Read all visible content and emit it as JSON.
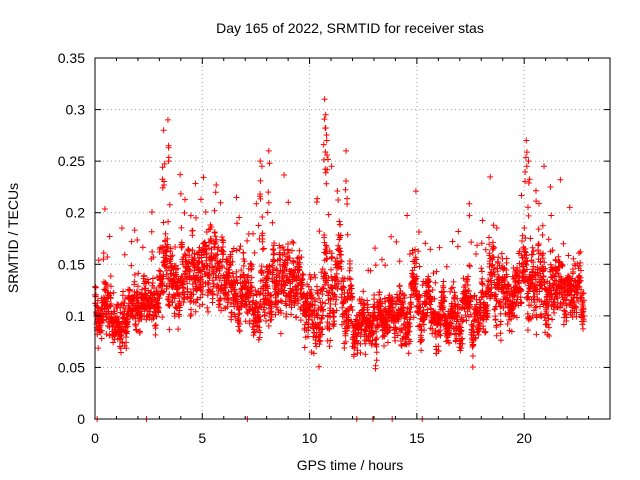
{
  "chart_data": {
    "type": "scatter",
    "title": "Day 165 of 2022, SRMTID for receiver stas",
    "xlabel": "GPS time / hours",
    "ylabel": "SRMTID / TECUs",
    "xlim": [
      0,
      24
    ],
    "ylim": [
      0,
      0.35
    ],
    "x_ticks": [
      "0",
      "5",
      "10",
      "15",
      "20"
    ],
    "y_ticks": [
      "0",
      "0.05",
      "0.1",
      "0.15",
      "0.2",
      "0.25",
      "0.3",
      "0.35"
    ],
    "grid": true,
    "marker": "+",
    "colors": {
      "series": "#ff0000",
      "grid": "#a0a0a0",
      "axis": "#000000"
    },
    "series": [
      {
        "name": "SRMTID",
        "generated_from_envelope": true,
        "points_per_hour": 160,
        "seed": 165,
        "hourly_center": [
          0.11,
          0.105,
          0.1,
          0.13,
          0.135,
          0.14,
          0.12,
          0.11,
          0.13,
          0.11,
          0.12,
          0.125,
          0.09,
          0.1,
          0.115,
          0.095,
          0.095,
          0.1,
          0.12,
          0.125,
          0.14,
          0.12,
          0.12,
          0.13
        ],
        "hourly_spread": [
          0.05,
          0.05,
          0.05,
          0.07,
          0.07,
          0.07,
          0.06,
          0.07,
          0.07,
          0.06,
          0.08,
          0.07,
          0.05,
          0.05,
          0.06,
          0.05,
          0.05,
          0.05,
          0.06,
          0.06,
          0.08,
          0.07,
          0.06,
          0.06
        ],
        "x_end": 22.8,
        "peaks": [
          {
            "x": 3.2,
            "y": 0.28
          },
          {
            "x": 3.4,
            "y": 0.29
          },
          {
            "x": 7.7,
            "y": 0.25
          },
          {
            "x": 8.1,
            "y": 0.26
          },
          {
            "x": 10.7,
            "y": 0.31
          },
          {
            "x": 10.75,
            "y": 0.295
          },
          {
            "x": 10.8,
            "y": 0.27
          },
          {
            "x": 11.7,
            "y": 0.26
          },
          {
            "x": 20.1,
            "y": 0.27
          },
          {
            "x": 20.2,
            "y": 0.25
          }
        ],
        "zero_points_x": [
          0.1,
          2.4,
          7.1,
          12.2,
          12.95,
          13.85,
          15.25
        ]
      }
    ]
  }
}
